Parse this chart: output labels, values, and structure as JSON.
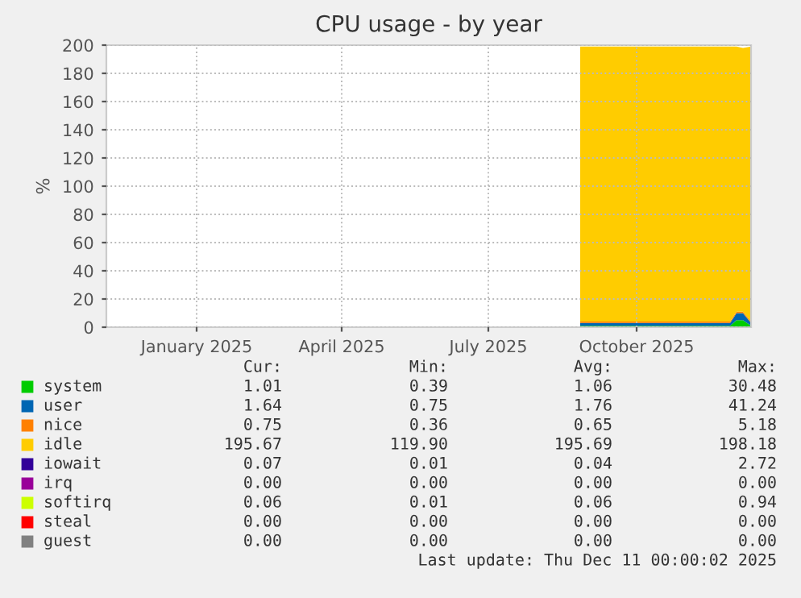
{
  "chart_data": {
    "type": "area",
    "stacked": true,
    "title": "CPU usage - by year",
    "ylabel": "%",
    "x": [
      "2025-08-27",
      "2025-09-15",
      "2025-10-01",
      "2025-10-15",
      "2025-11-01",
      "2025-11-15",
      "2025-11-28",
      "2025-12-02",
      "2025-12-06",
      "2025-12-11"
    ],
    "series": [
      {
        "name": "system",
        "color": "#00cc00",
        "values": [
          1,
          1,
          1,
          1,
          1,
          1,
          1,
          5,
          5,
          1
        ]
      },
      {
        "name": "user",
        "color": "#0066b3",
        "values": [
          2,
          2,
          2,
          2,
          2,
          2,
          2,
          5,
          5,
          2
        ]
      },
      {
        "name": "nice",
        "color": "#ff8000",
        "values": [
          1,
          1,
          1,
          1,
          1,
          1,
          1,
          1,
          1,
          1
        ]
      },
      {
        "name": "idle",
        "color": "#ffcc00",
        "values": [
          195,
          195,
          195,
          195,
          195,
          195,
          195,
          188,
          187,
          195
        ]
      },
      {
        "name": "iowait",
        "color": "#330099",
        "values": [
          null,
          null,
          null,
          null,
          null,
          null,
          null,
          null,
          null,
          null
        ]
      },
      {
        "name": "irq",
        "color": "#990099",
        "values": [
          null,
          null,
          null,
          null,
          null,
          null,
          null,
          null,
          null,
          null
        ]
      },
      {
        "name": "softirq",
        "color": "#ccff00",
        "values": [
          null,
          null,
          null,
          null,
          null,
          null,
          null,
          null,
          null,
          null
        ]
      },
      {
        "name": "steal",
        "color": "#ff0000",
        "values": [
          null,
          null,
          null,
          null,
          null,
          null,
          null,
          null,
          null,
          null
        ]
      },
      {
        "name": "guest",
        "color": "#808080",
        "values": [
          null,
          null,
          null,
          null,
          null,
          null,
          null,
          null,
          null,
          null
        ]
      }
    ],
    "xlim": [
      "2024-11-06",
      "2025-12-11"
    ],
    "xticks": [
      {
        "value": "2025-01-01",
        "label": "January 2025"
      },
      {
        "value": "2025-04-01",
        "label": "April 2025"
      },
      {
        "value": "2025-07-01",
        "label": "July 2025"
      },
      {
        "value": "2025-10-01",
        "label": "October 2025"
      }
    ],
    "ylim": [
      0,
      200
    ],
    "yticks": [
      0,
      20,
      40,
      60,
      80,
      100,
      120,
      140,
      160,
      180,
      200
    ],
    "grid": true,
    "legend": "bottom",
    "annotations": [
      "Cur:",
      "Min:",
      "Avg:",
      "Max:",
      "1.01",
      "0.39",
      "1.06",
      "30.48",
      "1.64",
      "0.75",
      "1.76",
      "41.24",
      "0.75",
      "0.36",
      "0.65",
      "5.18",
      "195.67",
      "119.90",
      "195.69",
      "198.18",
      "0.07",
      "0.01",
      "0.04",
      "2.72",
      "0.00",
      "0.00",
      "0.00",
      "0.00",
      "0.06",
      "0.01",
      "0.06",
      "0.94",
      "0.00",
      "0.00",
      "0.00",
      "0.00",
      "0.00",
      "0.00",
      "0.00",
      "0.00",
      "Last update: Thu Dec 11 00:00:02 2025"
    ]
  }
}
